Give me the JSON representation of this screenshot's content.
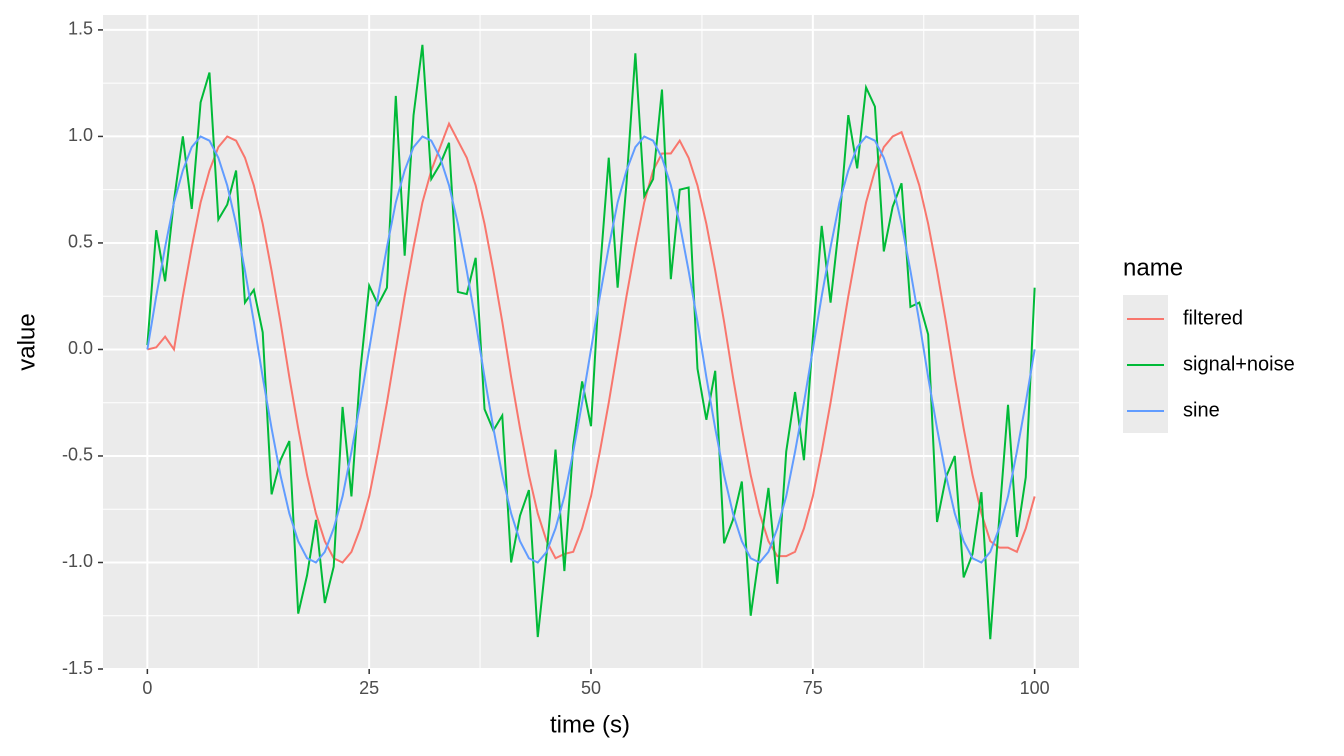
{
  "chart_data": {
    "type": "line",
    "x_label": "time (s)",
    "y_label": "value",
    "legend_title": "name",
    "legend": "right",
    "grid": true,
    "x": [
      0,
      1,
      2,
      3,
      4,
      5,
      6,
      7,
      8,
      9,
      10,
      11,
      12,
      13,
      14,
      15,
      16,
      17,
      18,
      19,
      20,
      21,
      22,
      23,
      24,
      25,
      26,
      27,
      28,
      29,
      30,
      31,
      32,
      33,
      34,
      35,
      36,
      37,
      38,
      39,
      40,
      41,
      42,
      43,
      44,
      45,
      46,
      47,
      48,
      49,
      50,
      51,
      52,
      53,
      54,
      55,
      56,
      57,
      58,
      59,
      60,
      61,
      62,
      63,
      64,
      65,
      66,
      67,
      68,
      69,
      70,
      71,
      72,
      73,
      74,
      75,
      76,
      77,
      78,
      79,
      80,
      81,
      82,
      83,
      84,
      85,
      86,
      87,
      88,
      89,
      90,
      91,
      92,
      93,
      94,
      95,
      96,
      97,
      98,
      99,
      100
    ],
    "series": [
      {
        "name": "filtered",
        "color": "#F8766D",
        "values": [
          0,
          0.01,
          0.06,
          0,
          0.25,
          0.48,
          0.69,
          0.84,
          0.95,
          1,
          0.98,
          0.9,
          0.77,
          0.59,
          0.37,
          0.13,
          -0.13,
          -0.37,
          -0.59,
          -0.77,
          -0.9,
          -0.98,
          -1,
          -0.95,
          -0.84,
          -0.69,
          -0.48,
          -0.25,
          0,
          0.25,
          0.48,
          0.69,
          0.84,
          0.95,
          1.06,
          0.98,
          0.9,
          0.77,
          0.59,
          0.37,
          0.13,
          -0.13,
          -0.37,
          -0.59,
          -0.77,
          -0.9,
          -0.98,
          -0.96,
          -0.95,
          -0.84,
          -0.69,
          -0.48,
          -0.25,
          0,
          0.25,
          0.48,
          0.69,
          0.84,
          0.92,
          0.92,
          0.98,
          0.9,
          0.77,
          0.59,
          0.37,
          0.13,
          -0.13,
          -0.37,
          -0.59,
          -0.77,
          -0.9,
          -0.97,
          -0.97,
          -0.95,
          -0.84,
          -0.69,
          -0.48,
          -0.25,
          0,
          0.25,
          0.48,
          0.69,
          0.84,
          0.95,
          1,
          1.02,
          0.9,
          0.77,
          0.59,
          0.37,
          0.13,
          -0.13,
          -0.37,
          -0.59,
          -0.77,
          -0.9,
          -0.93,
          -0.93,
          -0.95,
          -0.84,
          -0.69
        ]
      },
      {
        "name": "signal+noise",
        "color": "#00BA38",
        "values": [
          0.02,
          0.56,
          0.32,
          0.7,
          1.0,
          0.66,
          1.16,
          1.3,
          0.61,
          0.68,
          0.84,
          0.22,
          0.28,
          0.08,
          -0.68,
          -0.52,
          -0.43,
          -1.24,
          -1.06,
          -0.8,
          -1.19,
          -1.02,
          -0.27,
          -0.69,
          -0.1,
          0.3,
          0.21,
          0.29,
          1.19,
          0.44,
          1.1,
          1.43,
          0.8,
          0.87,
          0.97,
          0.27,
          0.26,
          0.43,
          -0.28,
          -0.38,
          -0.31,
          -1.0,
          -0.78,
          -0.66,
          -1.35,
          -0.96,
          -0.47,
          -1.04,
          -0.45,
          -0.15,
          -0.36,
          0.36,
          0.9,
          0.29,
          0.78,
          1.39,
          0.72,
          0.8,
          1.22,
          0.33,
          0.75,
          0.76,
          -0.09,
          -0.33,
          -0.1,
          -0.91,
          -0.8,
          -0.62,
          -1.25,
          -0.95,
          -0.65,
          -1.1,
          -0.48,
          -0.2,
          -0.52,
          0.05,
          0.58,
          0.22,
          0.6,
          1.1,
          0.85,
          1.23,
          1.14,
          0.46,
          0.67,
          0.78,
          0.2,
          0.22,
          0.07,
          -0.81,
          -0.6,
          -0.5,
          -1.07,
          -0.96,
          -0.67,
          -1.36,
          -0.8,
          -0.26,
          -0.88,
          -0.6,
          0.29
        ]
      },
      {
        "name": "sine",
        "color": "#619CFF",
        "values": [
          0,
          0.25,
          0.48,
          0.69,
          0.84,
          0.95,
          1,
          0.98,
          0.9,
          0.77,
          0.59,
          0.37,
          0.13,
          -0.13,
          -0.37,
          -0.59,
          -0.77,
          -0.9,
          -0.98,
          -1,
          -0.95,
          -0.84,
          -0.69,
          -0.48,
          -0.25,
          0,
          0.25,
          0.48,
          0.69,
          0.84,
          0.95,
          1,
          0.98,
          0.9,
          0.77,
          0.59,
          0.37,
          0.13,
          -0.13,
          -0.37,
          -0.59,
          -0.77,
          -0.9,
          -0.98,
          -1,
          -0.95,
          -0.84,
          -0.69,
          -0.48,
          -0.25,
          0,
          0.25,
          0.48,
          0.69,
          0.84,
          0.95,
          1,
          0.98,
          0.9,
          0.77,
          0.59,
          0.37,
          0.13,
          -0.13,
          -0.37,
          -0.59,
          -0.77,
          -0.9,
          -0.98,
          -1,
          -0.95,
          -0.84,
          -0.69,
          -0.48,
          -0.25,
          0,
          0.25,
          0.48,
          0.69,
          0.84,
          0.95,
          1,
          0.98,
          0.9,
          0.77,
          0.59,
          0.37,
          0.13,
          -0.13,
          -0.37,
          -0.59,
          -0.77,
          -0.9,
          -0.98,
          -1,
          -0.95,
          -0.84,
          -0.69,
          -0.48,
          -0.25,
          0
        ]
      }
    ],
    "xlim": [
      -5,
      105
    ],
    "xticks": [
      0,
      25,
      50,
      75,
      100
    ],
    "ylim": [
      -1.5,
      1.57
    ],
    "yticks": [
      -1.5,
      -0.5,
      {
        "value": -1,
        "label": "-1.0"
      },
      {
        "value": 0,
        "label": "0.0"
      },
      0.5,
      {
        "value": 1,
        "label": "1.0"
      },
      1.5
    ]
  }
}
